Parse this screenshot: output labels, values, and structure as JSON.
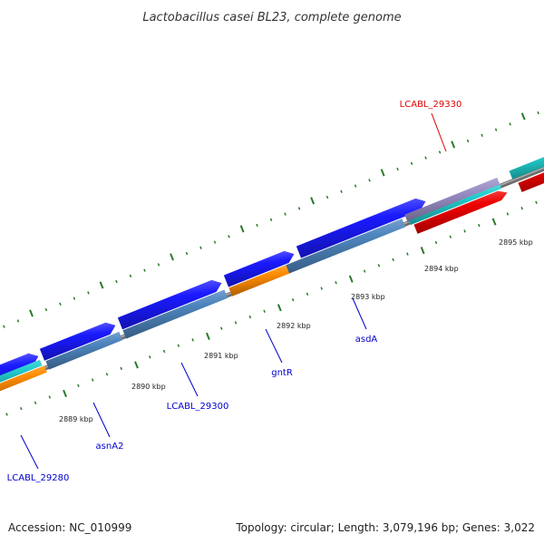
{
  "title": "Lactobacillus casei BL23, complete genome",
  "footer": {
    "accession": "Accession: NC_010999",
    "topology": "Topology: circular; Length: 3,079,196 bp; Genes: 3,022"
  },
  "scale_labels": [
    "2889 kbp",
    "2890 kbp",
    "2891 kbp",
    "2892 kbp",
    "2893 kbp",
    "2894 kbp",
    "2895 kbp"
  ],
  "gene_labels": [
    {
      "name": "LCABL_29280",
      "color": "#0000cc"
    },
    {
      "name": "asnA2",
      "color": "#0000cc"
    },
    {
      "name": "LCABL_29300",
      "color": "#0000cc"
    },
    {
      "name": "gntR",
      "color": "#0000cc"
    },
    {
      "name": "asdA",
      "color": "#0000cc"
    },
    {
      "name": "LCABL_29330",
      "color": "#dd0000"
    }
  ],
  "colors": {
    "gene_blue": "#1a1aff",
    "gene_steel": "#4f86bf",
    "gene_orange": "#ff8c00",
    "gene_cyan": "#22cccc",
    "gene_red": "#ee0000",
    "gene_lavender": "#9a8fc6",
    "backbone": "#888888",
    "tick_green": "#2a7a2a"
  }
}
